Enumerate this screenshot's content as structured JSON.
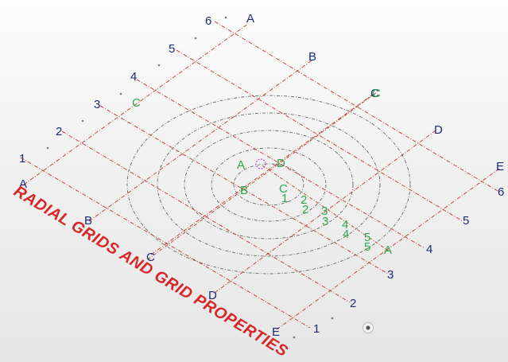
{
  "viewport": {
    "background_top": "#fdfdfd",
    "background_bottom": "#e6e6e6",
    "grid_color": "#c0392b",
    "label_color": "#1e2a78",
    "radial_label_color": "#2fa84f",
    "highlight_color": "#cc33cc"
  },
  "rectangular_grid": {
    "letter_labels": [
      "A",
      "B",
      "C",
      "D",
      "E"
    ],
    "number_labels": [
      "1",
      "2",
      "3",
      "4",
      "5",
      "6"
    ],
    "left_edge_numbers": [
      "1",
      "2",
      "3",
      "4",
      "5",
      "6"
    ],
    "left_edge_letters": [
      "A",
      "B",
      "C",
      "D",
      "E"
    ]
  },
  "radial_grid": {
    "center_labels": [
      "A",
      "D",
      "B",
      "C"
    ],
    "ring_labels": [
      "1",
      "2",
      "3",
      "4",
      "5"
    ],
    "ring_labels_outer": [
      "A"
    ],
    "ring_count": 5
  },
  "watermark_text": "RADIAL GRIDS AND GRID PROPERTIES",
  "icons": {
    "nav_dot": "orbit-center-icon"
  }
}
